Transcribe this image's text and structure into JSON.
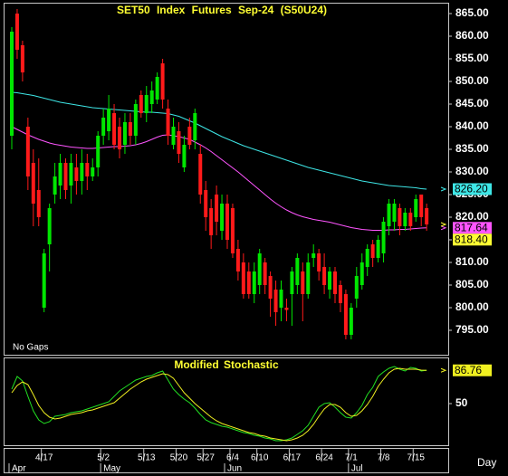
{
  "chart_data": [
    {
      "type": "candlestick",
      "title": "SET50 Index Futures Sep-24 (S50U24)",
      "annotation": "No Gaps",
      "xlabel": "Day",
      "categories": [
        null,
        null,
        null,
        null,
        null,
        null,
        "4/17",
        null,
        null,
        null,
        null,
        null,
        null,
        null,
        null,
        null,
        null,
        "5/2",
        null,
        null,
        null,
        null,
        null,
        null,
        null,
        "5/13",
        null,
        null,
        null,
        null,
        null,
        "5/20",
        null,
        null,
        null,
        null,
        "5/27",
        null,
        null,
        null,
        null,
        "6/4",
        null,
        null,
        null,
        null,
        "6/10",
        null,
        null,
        null,
        null,
        null,
        "6/17",
        null,
        null,
        null,
        null,
        null,
        "6/24",
        null,
        null,
        null,
        null,
        "7/1",
        null,
        null,
        null,
        null,
        null,
        "7/8",
        null,
        null,
        null,
        null,
        null,
        "7/15",
        null,
        null
      ],
      "months": [
        {
          "label": "Apr",
          "at": 0
        },
        {
          "label": "May",
          "at": 17
        },
        {
          "label": "Jun",
          "at": 40
        },
        {
          "label": "Jul",
          "at": 63
        }
      ],
      "open": [
        838,
        865,
        858,
        840,
        832,
        826,
        800,
        814,
        825,
        827,
        832,
        827,
        831,
        828,
        832,
        829,
        831,
        838,
        839,
        843,
        840,
        836,
        841,
        838,
        847,
        843,
        845,
        846,
        854,
        844,
        836,
        839,
        831,
        840,
        837,
        834,
        826,
        822,
        825,
        817,
        823,
        822,
        813,
        810,
        808,
        803,
        805,
        810,
        807,
        804,
        800,
        800,
        803,
        805,
        808,
        803,
        811,
        812,
        809,
        804,
        808,
        805,
        803,
        794,
        802,
        805,
        809,
        814,
        811,
        812,
        818,
        819,
        822,
        818,
        821,
        820,
        825,
        822
      ],
      "high": [
        862,
        866,
        859,
        842,
        835,
        833,
        813,
        823,
        832,
        834,
        833,
        834,
        834,
        835,
        834,
        833,
        839,
        844,
        847,
        845,
        842,
        843,
        843,
        846,
        848,
        849,
        850,
        852,
        855,
        846,
        842,
        841,
        838,
        842,
        844,
        836,
        828,
        824,
        827,
        825,
        825,
        823,
        815,
        812,
        810,
        810,
        813,
        811,
        808,
        806,
        806,
        802,
        809,
        812,
        810,
        812,
        814,
        813,
        812,
        809,
        809,
        806,
        804,
        801,
        809,
        812,
        814,
        815,
        816,
        820,
        824,
        824,
        823,
        822,
        822,
        825,
        825,
        823
      ],
      "low": [
        835,
        855,
        850,
        826,
        818,
        818,
        799,
        808,
        823,
        824,
        824,
        823,
        825,
        825,
        826,
        828,
        829,
        836,
        837,
        835,
        833,
        834,
        836,
        836,
        842,
        841,
        843,
        845,
        844,
        836,
        835,
        832,
        830,
        835,
        835,
        823,
        817,
        813,
        816,
        815,
        813,
        811,
        806,
        802,
        802,
        801,
        803,
        803,
        798,
        796,
        797,
        797,
        796,
        803,
        797,
        802,
        809,
        806,
        803,
        802,
        801,
        799,
        793,
        793,
        800,
        804,
        807,
        809,
        810,
        810,
        816,
        817,
        816,
        817,
        817,
        819,
        818,
        817
      ],
      "close": [
        861,
        857,
        852,
        829,
        823,
        820,
        812,
        822,
        829,
        832,
        826,
        832,
        828,
        832,
        829,
        831,
        838,
        842,
        844,
        836,
        835,
        841,
        838,
        845,
        843,
        847,
        848,
        851,
        846,
        838,
        840,
        834,
        836,
        836,
        843,
        825,
        820,
        816,
        819,
        823,
        815,
        812,
        808,
        803,
        803,
        808,
        812,
        805,
        802,
        799,
        804,
        799.5,
        808,
        811,
        803,
        810,
        812,
        808,
        805,
        808,
        803,
        801,
        794,
        800,
        807,
        810,
        813,
        811,
        815,
        819,
        823,
        823,
        818,
        821,
        818,
        824,
        820,
        818.4
      ],
      "close_label": "818.40",
      "up_color": "#00e600",
      "down_color": "#ff1a1a",
      "series": [
        {
          "color": "#3ee6e6",
          "value_label": "826.20",
          "values": [
            847.6,
            847.5,
            847.3,
            847.1,
            846.9,
            846.6,
            846.3,
            846.0,
            845.7,
            845.4,
            845.2,
            845.0,
            844.8,
            844.6,
            844.4,
            844.2,
            844.1,
            844.0,
            843.9,
            843.8,
            843.7,
            843.6,
            843.5,
            843.4,
            843.3,
            843.2,
            843.2,
            843.1,
            843.0,
            842.9,
            842.6,
            842.3,
            841.8,
            841.3,
            840.8,
            840.2,
            839.6,
            839.0,
            838.4,
            837.8,
            837.3,
            836.8,
            836.3,
            835.8,
            835.4,
            835.0,
            834.6,
            834.2,
            833.8,
            833.4,
            833.0,
            832.6,
            832.2,
            831.8,
            831.4,
            831.0,
            830.7,
            830.4,
            830.1,
            829.8,
            829.5,
            829.2,
            828.9,
            828.6,
            828.3,
            828.0,
            827.8,
            827.6,
            827.4,
            827.2,
            827.0,
            826.9,
            826.8,
            826.7,
            826.6,
            826.5,
            826.3,
            826.2
          ]
        },
        {
          "color": "#ff55ff",
          "value_label": "817.64",
          "values": [
            840.0,
            839.4,
            838.8,
            838.2,
            837.7,
            837.2,
            836.8,
            836.4,
            836.1,
            835.9,
            835.7,
            835.5,
            835.4,
            835.3,
            835.2,
            835.2,
            835.3,
            835.4,
            835.5,
            835.6,
            835.6,
            835.7,
            835.8,
            836.0,
            836.3,
            836.7,
            837.2,
            837.7,
            838.1,
            838.2,
            838.0,
            837.8,
            837.5,
            837.2,
            836.6,
            836.0,
            835.3,
            834.5,
            833.6,
            832.7,
            831.8,
            830.9,
            830.0,
            829.0,
            828.0,
            827.0,
            826.0,
            825.0,
            824.0,
            823.1,
            822.3,
            821.6,
            821.0,
            820.5,
            820.1,
            819.8,
            819.5,
            819.3,
            819.1,
            818.9,
            818.6,
            818.3,
            818.0,
            817.7,
            817.5,
            817.3,
            817.2,
            817.1,
            817.1,
            817.1,
            817.2,
            817.2,
            817.3,
            817.3,
            817.4,
            817.5,
            817.6,
            817.64
          ]
        }
      ],
      "ylim": [
        789.6,
        867.4
      ],
      "yticks": [
        {
          "value": 865,
          "label": "865.00"
        },
        {
          "value": 860,
          "label": "860.00"
        },
        {
          "value": 855,
          "label": "855.00"
        },
        {
          "value": 850,
          "label": "850.00"
        },
        {
          "value": 845,
          "label": "845.00"
        },
        {
          "value": 840,
          "label": "840.00"
        },
        {
          "value": 835,
          "label": "835.00"
        },
        {
          "value": 830,
          "label": "830.00"
        },
        {
          "value": 825,
          "label": "825.00"
        },
        {
          "value": 820,
          "label": "820.00"
        },
        {
          "value": 815,
          "label": "815.00"
        },
        {
          "value": 810,
          "label": "810.00"
        },
        {
          "value": 805,
          "label": "805.00"
        },
        {
          "value": 800,
          "label": "800.00"
        },
        {
          "value": 795,
          "label": "795.00"
        }
      ]
    },
    {
      "type": "line",
      "title": "Modified Stochastic",
      "series": [
        {
          "color": "#22e022",
          "values": [
            66,
            80,
            75,
            58,
            42,
            32,
            28,
            30,
            36,
            37,
            38,
            40,
            41,
            42,
            44,
            46,
            48,
            50,
            52,
            58,
            64,
            68,
            72,
            76,
            78,
            80,
            81,
            84,
            86,
            76,
            66,
            60,
            55,
            51,
            45,
            38,
            32,
            29,
            27,
            25,
            24,
            22,
            20,
            18,
            17,
            15,
            14,
            12,
            11,
            9,
            9,
            10,
            12,
            16,
            20,
            26,
            36,
            46,
            50,
            51,
            46,
            40,
            35,
            34,
            40,
            48,
            60,
            68,
            80,
            85,
            89,
            91,
            88,
            86,
            90,
            89,
            86,
            86.82
          ]
        },
        {
          "color": "#f0f020",
          "value_label": "86.76",
          "values": [
            62,
            70,
            74,
            71,
            60,
            48,
            40,
            35,
            33,
            34,
            36,
            38,
            39,
            40,
            42,
            43,
            45,
            47,
            49,
            51,
            56,
            61,
            66,
            70,
            74,
            77,
            79,
            81,
            83,
            82,
            78,
            70,
            62,
            56,
            50,
            45,
            40,
            35,
            31,
            28,
            26,
            24,
            22,
            20,
            18,
            17,
            15,
            14,
            12,
            11,
            10,
            9,
            10,
            12,
            15,
            20,
            27,
            36,
            44,
            49,
            49,
            46,
            40,
            36,
            37,
            42,
            49,
            58,
            69,
            77,
            84,
            88,
            89,
            88,
            88,
            88,
            87,
            86.76
          ]
        }
      ],
      "ylim": [
        4,
        100
      ],
      "yticks": [
        50
      ]
    }
  ]
}
